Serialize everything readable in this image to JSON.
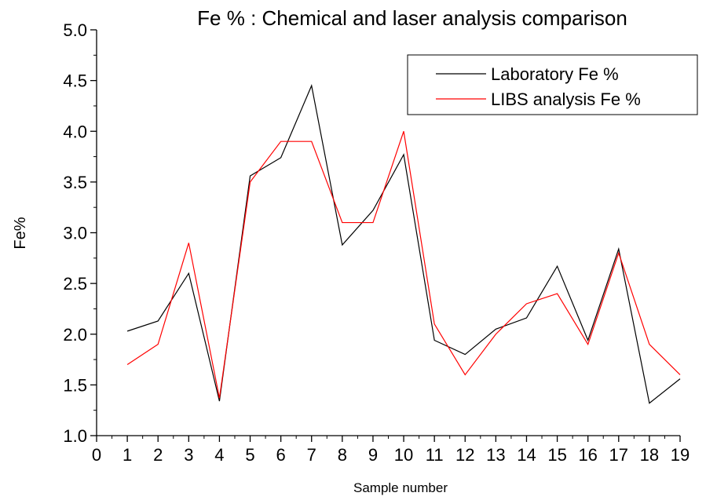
{
  "chart_data": {
    "type": "line",
    "title": "Fe % : Chemical and laser analysis comparison",
    "x_label": "Sample number",
    "y_label": "Fe%",
    "x": [
      1,
      2,
      3,
      4,
      5,
      6,
      7,
      8,
      9,
      10,
      11,
      12,
      13,
      14,
      15,
      16,
      17,
      18,
      19
    ],
    "series": [
      {
        "name": "Laboratory Fe %",
        "color": "#000000",
        "values": [
          2.03,
          2.13,
          2.6,
          1.34,
          3.56,
          3.74,
          4.45,
          2.88,
          3.22,
          3.77,
          1.94,
          1.8,
          2.05,
          2.16,
          2.67,
          1.94,
          2.84,
          1.32,
          1.56
        ]
      },
      {
        "name": "LIBS analysis Fe %",
        "color": "#ff0000",
        "values": [
          1.7,
          1.9,
          2.9,
          1.37,
          3.5,
          3.9,
          3.9,
          3.1,
          3.1,
          4.0,
          2.1,
          1.6,
          2.0,
          2.3,
          2.4,
          1.9,
          2.8,
          1.9,
          1.6
        ]
      }
    ],
    "xlim": [
      0,
      19
    ],
    "xticks": [
      0,
      1,
      2,
      3,
      4,
      5,
      6,
      7,
      8,
      9,
      10,
      11,
      12,
      13,
      14,
      15,
      16,
      17,
      18,
      19
    ],
    "ylim": [
      1,
      5
    ],
    "yticks": [
      {
        "value": 1,
        "label": "1.0"
      },
      1.5,
      {
        "value": 2,
        "label": "2.0"
      },
      2.5,
      {
        "value": 3,
        "label": "3.0"
      },
      3.5,
      {
        "value": 4,
        "label": "4.0"
      },
      4.5,
      {
        "value": 5,
        "label": "5.0"
      }
    ],
    "legend": "top-right",
    "grid": false
  }
}
